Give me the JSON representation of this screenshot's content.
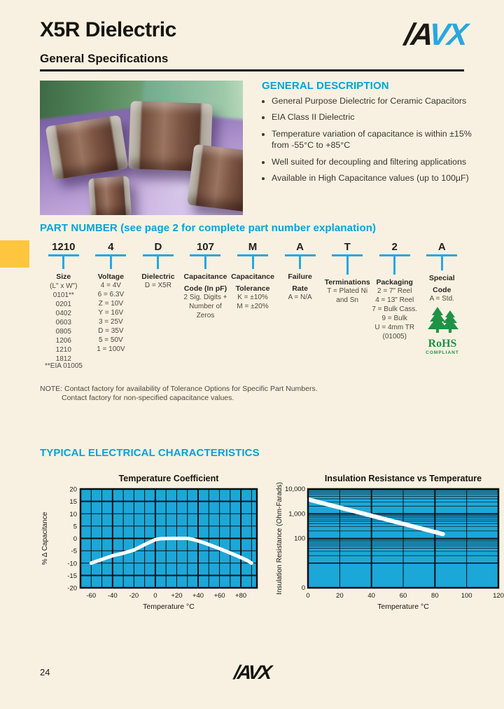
{
  "page": {
    "bg_color": "#f8f1e1",
    "accent_color": "#00a3dd",
    "tab_color": "#fdc63e",
    "rohs_green": "#1f9246"
  },
  "header": {
    "title": "X5R Dielectric",
    "subtitle": "General Specifications"
  },
  "logo": {
    "black_part": "/A",
    "blue_part": "VX"
  },
  "general_description": {
    "heading": "GENERAL DESCRIPTION",
    "bullets": [
      "General Purpose Dielectric for Ceramic Capacitors",
      "EIA Class II Dielectric",
      "Temperature variation of capacitance is within ±15% from -55°C to +85°C",
      "Well suited for decoupling and filtering applications",
      "Available in High Capacitance values (up to 100µF)"
    ]
  },
  "part_number": {
    "heading": "PART NUMBER (see page 2 for complete part number explanation)",
    "columns": [
      {
        "key": "size",
        "code": "1210",
        "label_lines": [
          "Size"
        ],
        "sublabel": "(L\" x W\")",
        "items": [
          "0101**",
          "0201",
          "0402",
          "0603",
          "0805",
          "1206",
          "1210",
          "1812"
        ]
      },
      {
        "key": "voltage",
        "code": "4",
        "label_lines": [
          "Voltage"
        ],
        "sublabel": "",
        "items": [
          "4 = 4V",
          "6 = 6.3V",
          "Z = 10V",
          "Y = 16V",
          "3 = 25V",
          "D = 35V",
          "5 = 50V",
          "1 = 100V"
        ]
      },
      {
        "key": "dielectric",
        "code": "D",
        "label_lines": [
          "Dielectric"
        ],
        "sublabel": "",
        "items": [
          "D = X5R"
        ]
      },
      {
        "key": "capacitance-code",
        "code": "107",
        "label_lines": [
          "Capacitance",
          "Code (In pF)"
        ],
        "sublabel": "",
        "items": [
          "2 Sig. Digits +",
          "Number of",
          "Zeros"
        ]
      },
      {
        "key": "capacitance-tolerance",
        "code": "M",
        "label_lines": [
          "Capacitance",
          "Tolerance"
        ],
        "sublabel": "",
        "items": [
          "K = ±10%",
          "M = ±20%"
        ]
      },
      {
        "key": "failure-rate",
        "code": "A",
        "label_lines": [
          "Failure",
          "Rate"
        ],
        "sublabel": "",
        "items": [
          "A = N/A"
        ]
      },
      {
        "key": "terminations",
        "code": "T",
        "label_lines": [
          "Terminations"
        ],
        "sublabel": "",
        "items": [
          "T = Plated Ni",
          "and Sn"
        ]
      },
      {
        "key": "packaging",
        "code": "2",
        "label_lines": [
          "Packaging"
        ],
        "sublabel": "",
        "items": [
          "2 = 7\" Reel",
          "4 = 13\" Reel",
          "7 = Bulk Cass.",
          "9 = Bulk",
          "U = 4mm TR",
          "(01005)"
        ]
      },
      {
        "key": "special-code",
        "code": "A",
        "label_lines": [
          "Special",
          "Code"
        ],
        "sublabel": "",
        "items": [
          "A = Std."
        ]
      }
    ],
    "footnote": "**EIA 01005",
    "note_line1": "NOTE: Contact factory for availability of Tolerance Options for Specific Part Numbers.",
    "note_line2": "Contact factory for non-specified capacitance values.",
    "rohs": {
      "title": "RoHS",
      "subtitle": "COMPLIANT"
    }
  },
  "electrical": {
    "heading": "TYPICAL ELECTRICAL CHARACTERISTICS"
  },
  "footer": {
    "page_number": "24",
    "logo_text": "/AVX"
  },
  "chart_data": [
    {
      "type": "line",
      "title": "Temperature Coefficient",
      "xlabel": "Temperature °C",
      "ylabel": "% Δ Capacitance",
      "xlim": [
        -70,
        95
      ],
      "ylim": [
        -20,
        20
      ],
      "xticks": [
        -60,
        -40,
        -20,
        0,
        20,
        40,
        60,
        80
      ],
      "xtick_labels": [
        "-60",
        "-40",
        "-20",
        "0",
        "+20",
        "+40",
        "+60",
        "+80"
      ],
      "yticks": [
        20,
        15,
        10,
        5,
        0,
        -5,
        -10,
        -15,
        -20
      ],
      "x_grid_step": 10,
      "y_grid_step": 5,
      "grid": true,
      "legend_position": "none",
      "bg_color": "#1ca7d9",
      "line_color": "#ffffff",
      "line_width": 5,
      "series": [
        {
          "name": "% capacitance change vs temperature",
          "x": [
            -60,
            -50,
            -40,
            -30,
            -20,
            -10,
            0,
            5,
            15,
            30,
            35,
            45,
            55,
            65,
            75,
            85,
            90
          ],
          "y": [
            -10,
            -8.5,
            -7,
            -6,
            -4.7,
            -2.5,
            -0.5,
            -0.1,
            0,
            0,
            -0.4,
            -1.7,
            -3.3,
            -5,
            -6.8,
            -8.7,
            -10
          ]
        }
      ]
    },
    {
      "type": "line",
      "title": "Insulation Resistance vs Temperature",
      "xlabel": "Temperature °C",
      "ylabel": "Insulation Resistance (Ohm-Farads)",
      "xlim": [
        0,
        120
      ],
      "ylim": [
        1,
        10000
      ],
      "log_y": true,
      "xticks": [
        0,
        20,
        40,
        60,
        80,
        100,
        120
      ],
      "xtick_labels": [
        "0",
        "20",
        "40",
        "60",
        "80",
        "100",
        "120"
      ],
      "ytick_pairs": [
        [
          "10,000",
          10000
        ],
        [
          "1,000",
          1000
        ],
        [
          "100",
          100
        ],
        [
          "0",
          1
        ]
      ],
      "x_grid_step": 20,
      "grid": true,
      "legend_position": "none",
      "bg_color": "#1ca7d9",
      "line_color": "#ffffff",
      "line_width": 6,
      "series": [
        {
          "name": "insulation resistance",
          "x": [
            0,
            85
          ],
          "y": [
            3800,
            150
          ]
        }
      ]
    }
  ]
}
